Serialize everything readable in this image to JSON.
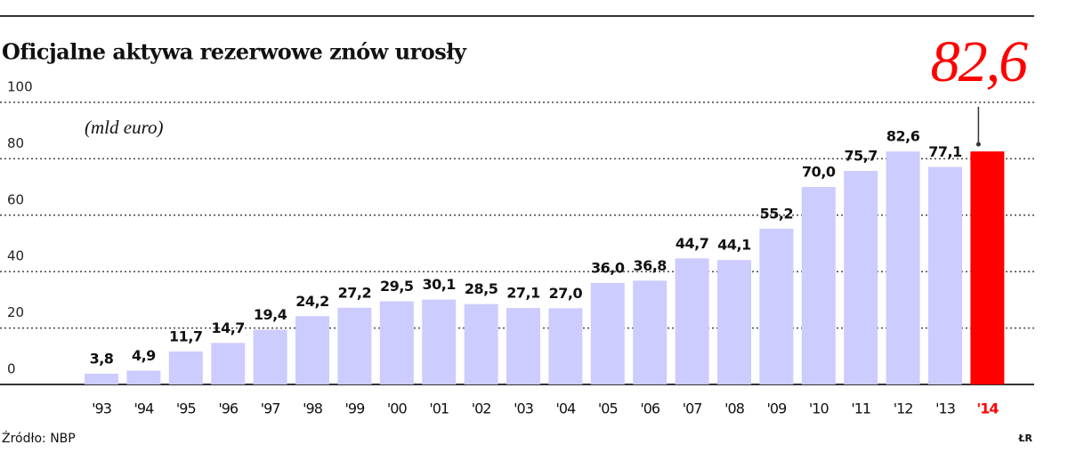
{
  "chart_data": {
    "type": "bar",
    "title": "Oficjalne aktywa rezerwowe znów urosły",
    "subtitle": "(mld euro)",
    "source": "Źródło: NBP",
    "credit": "ŁR",
    "categories": [
      "'93",
      "'94",
      "'95",
      "'96",
      "'97",
      "'98",
      "'99",
      "'00",
      "'01",
      "'02",
      "'03",
      "'04",
      "'05",
      "'06",
      "'07",
      "'08",
      "'09",
      "'10",
      "'11",
      "'12",
      "'13",
      "'14"
    ],
    "values": [
      3.8,
      4.9,
      11.7,
      14.7,
      19.4,
      24.2,
      27.2,
      29.5,
      30.1,
      28.5,
      27.1,
      27.0,
      36.0,
      36.8,
      44.7,
      44.1,
      55.2,
      70.0,
      75.7,
      82.6,
      77.1,
      82.6
    ],
    "value_labels": [
      "3,8",
      "4,9",
      "11,7",
      "14,7",
      "19,4",
      "24,2",
      "27,2",
      "29,5",
      "30,1",
      "28,5",
      "27,1",
      "27,0",
      "36,0",
      "36,8",
      "44,7",
      "44,1",
      "55,2",
      "70,0",
      "75,7",
      "82,6",
      "77,1",
      "82,6"
    ],
    "colors": [
      "#ccccff",
      "#ccccff",
      "#ccccff",
      "#ccccff",
      "#ccccff",
      "#ccccff",
      "#ccccff",
      "#ccccff",
      "#ccccff",
      "#ccccff",
      "#ccccff",
      "#ccccff",
      "#ccccff",
      "#ccccff",
      "#ccccff",
      "#ccccff",
      "#ccccff",
      "#ccccff",
      "#ccccff",
      "#ccccff",
      "#ccccff",
      "#ff0000"
    ],
    "ylim": [
      0,
      100
    ],
    "yticks": [
      0,
      20,
      40,
      60,
      80,
      100
    ],
    "grid": true
  }
}
